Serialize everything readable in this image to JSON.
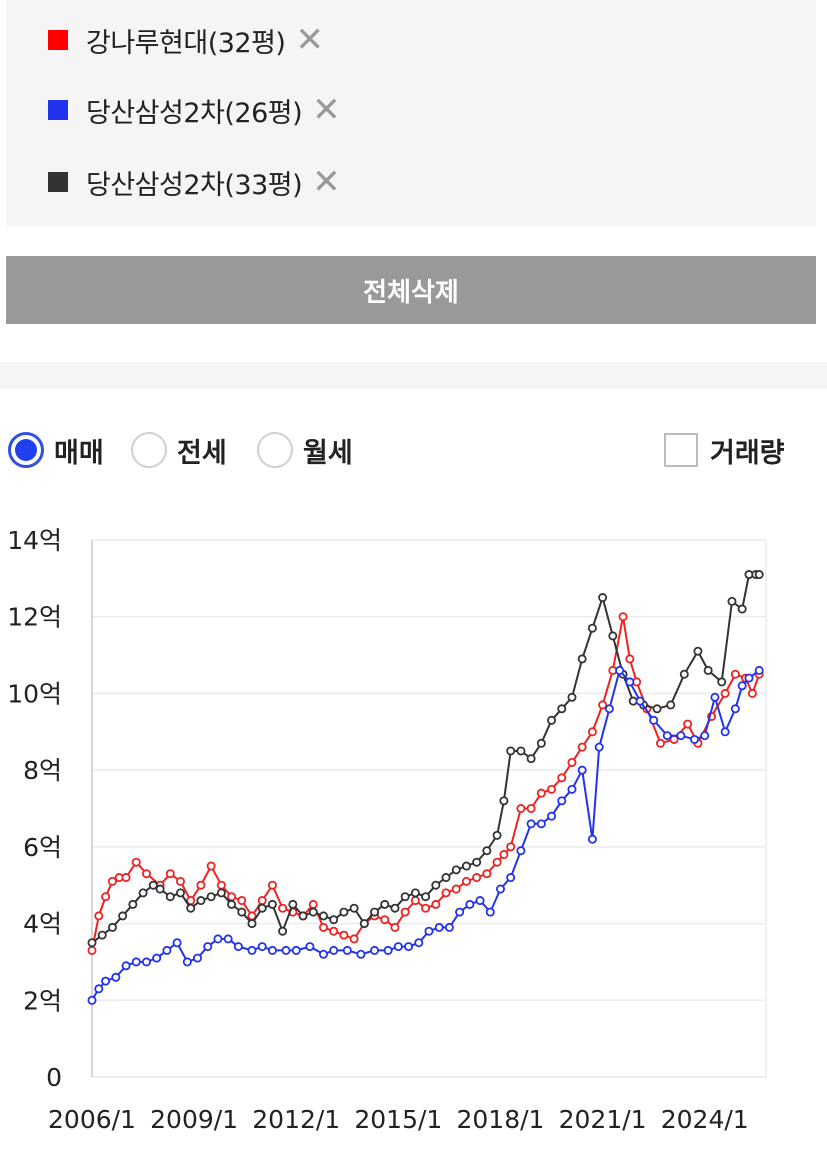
{
  "legend": {
    "items": [
      {
        "label": "강나루현대(32평)",
        "color": "#ff0000",
        "remove_icon": "close-icon"
      },
      {
        "label": "당산삼성2차(26평)",
        "color": "#2233ee",
        "remove_icon": "close-icon"
      },
      {
        "label": "당산삼성2차(33평)",
        "color": "#333333",
        "remove_icon": "close-icon"
      }
    ],
    "remove_glyph": "✕"
  },
  "delete_all_label": "전체삭제",
  "options": {
    "radios": [
      {
        "label": "매매",
        "checked": true
      },
      {
        "label": "전세",
        "checked": false
      },
      {
        "label": "월세",
        "checked": false
      }
    ],
    "volume_label": "거래량",
    "volume_checked": false
  },
  "colors": {
    "accent": "#2040f0",
    "button": "#999999",
    "panel": "#f5f5f5"
  },
  "chart_data": {
    "type": "line",
    "x_tick_labels": [
      "2006/1",
      "2009/1",
      "2012/1",
      "2015/1",
      "2018/1",
      "2021/1",
      "2024/1"
    ],
    "y_tick_labels": [
      "0",
      "2억",
      "4억",
      "6억",
      "8억",
      "10억",
      "12억",
      "14억"
    ],
    "xlim": [
      2006.0,
      2025.8
    ],
    "ylim": [
      0,
      14
    ],
    "grid": true,
    "series": [
      {
        "name": "강나루현대(32평)",
        "color": "#ee2222",
        "x": [
          2006.0,
          2006.2,
          2006.4,
          2006.6,
          2006.8,
          2007.0,
          2007.3,
          2007.6,
          2008.0,
          2008.3,
          2008.6,
          2008.9,
          2009.2,
          2009.5,
          2009.8,
          2010.1,
          2010.4,
          2010.7,
          2011.0,
          2011.3,
          2011.6,
          2011.9,
          2012.2,
          2012.5,
          2012.8,
          2013.1,
          2013.4,
          2013.7,
          2014.0,
          2014.3,
          2014.6,
          2014.9,
          2015.2,
          2015.5,
          2015.8,
          2016.1,
          2016.4,
          2016.7,
          2017.0,
          2017.3,
          2017.6,
          2017.9,
          2018.1,
          2018.3,
          2018.6,
          2018.9,
          2019.2,
          2019.5,
          2019.8,
          2020.1,
          2020.4,
          2020.7,
          2021.0,
          2021.3,
          2021.6,
          2021.8,
          2022.0,
          2022.3,
          2022.7,
          2023.1,
          2023.5,
          2023.8,
          2024.2,
          2024.6,
          2024.9,
          2025.2,
          2025.4,
          2025.6
        ],
        "y": [
          3.3,
          4.2,
          4.7,
          5.1,
          5.2,
          5.2,
          5.6,
          5.3,
          5.0,
          5.3,
          5.1,
          4.6,
          5.0,
          5.5,
          5.0,
          4.7,
          4.6,
          4.2,
          4.6,
          5.0,
          4.4,
          4.3,
          4.2,
          4.5,
          3.9,
          3.8,
          3.7,
          3.6,
          4.0,
          4.2,
          4.1,
          3.9,
          4.3,
          4.6,
          4.4,
          4.5,
          4.8,
          4.9,
          5.1,
          5.2,
          5.3,
          5.6,
          5.8,
          6.0,
          7.0,
          7.0,
          7.4,
          7.5,
          7.8,
          8.2,
          8.6,
          9.0,
          9.7,
          10.6,
          12.0,
          10.9,
          10.3,
          9.6,
          8.7,
          8.8,
          9.2,
          8.7,
          9.4,
          10.0,
          10.5,
          10.4,
          10.0,
          10.5
        ]
      },
      {
        "name": "당산삼성2차(26평)",
        "color": "#2233ee",
        "x": [
          2006.0,
          2006.2,
          2006.4,
          2006.7,
          2007.0,
          2007.3,
          2007.6,
          2007.9,
          2008.2,
          2008.5,
          2008.8,
          2009.1,
          2009.4,
          2009.7,
          2010.0,
          2010.3,
          2010.7,
          2011.0,
          2011.3,
          2011.7,
          2012.0,
          2012.4,
          2012.8,
          2013.1,
          2013.5,
          2013.9,
          2014.3,
          2014.7,
          2015.0,
          2015.3,
          2015.6,
          2015.9,
          2016.2,
          2016.5,
          2016.8,
          2017.1,
          2017.4,
          2017.7,
          2018.0,
          2018.3,
          2018.6,
          2018.9,
          2019.2,
          2019.5,
          2019.8,
          2020.1,
          2020.4,
          2020.7,
          2020.9,
          2021.2,
          2021.5,
          2021.8,
          2022.1,
          2022.5,
          2022.9,
          2023.3,
          2023.7,
          2024.0,
          2024.3,
          2024.6,
          2024.9,
          2025.1,
          2025.3,
          2025.6
        ],
        "y": [
          2.0,
          2.3,
          2.5,
          2.6,
          2.9,
          3.0,
          3.0,
          3.1,
          3.3,
          3.5,
          3.0,
          3.1,
          3.4,
          3.6,
          3.6,
          3.4,
          3.3,
          3.4,
          3.3,
          3.3,
          3.3,
          3.4,
          3.2,
          3.3,
          3.3,
          3.2,
          3.3,
          3.3,
          3.4,
          3.4,
          3.5,
          3.8,
          3.9,
          3.9,
          4.3,
          4.5,
          4.6,
          4.3,
          4.9,
          5.2,
          5.9,
          6.6,
          6.6,
          6.8,
          7.2,
          7.5,
          8.0,
          6.2,
          8.6,
          9.6,
          10.6,
          10.3,
          9.8,
          9.3,
          8.9,
          8.9,
          8.8,
          8.9,
          9.9,
          9.0,
          9.6,
          10.2,
          10.4,
          10.6
        ]
      },
      {
        "name": "당산삼성2차(33평)",
        "color": "#333333",
        "x": [
          2006.0,
          2006.3,
          2006.6,
          2006.9,
          2007.2,
          2007.5,
          2007.8,
          2008.0,
          2008.3,
          2008.6,
          2008.9,
          2009.2,
          2009.5,
          2009.8,
          2010.1,
          2010.4,
          2010.7,
          2011.0,
          2011.3,
          2011.6,
          2011.9,
          2012.2,
          2012.5,
          2012.8,
          2013.1,
          2013.4,
          2013.7,
          2014.0,
          2014.3,
          2014.6,
          2014.9,
          2015.2,
          2015.5,
          2015.8,
          2016.1,
          2016.4,
          2016.7,
          2017.0,
          2017.3,
          2017.6,
          2017.9,
          2018.1,
          2018.3,
          2018.6,
          2018.9,
          2019.2,
          2019.5,
          2019.8,
          2020.1,
          2020.4,
          2020.7,
          2021.0,
          2021.3,
          2021.6,
          2021.9,
          2022.2,
          2022.6,
          2023.0,
          2023.4,
          2023.8,
          2024.1,
          2024.5,
          2024.8,
          2025.1,
          2025.3,
          2025.5,
          2025.6
        ],
        "y": [
          3.5,
          3.7,
          3.9,
          4.2,
          4.5,
          4.8,
          5.0,
          4.9,
          4.7,
          4.8,
          4.4,
          4.6,
          4.7,
          4.8,
          4.5,
          4.3,
          4.0,
          4.4,
          4.5,
          3.8,
          4.5,
          4.2,
          4.3,
          4.2,
          4.1,
          4.3,
          4.4,
          4.0,
          4.3,
          4.5,
          4.4,
          4.7,
          4.8,
          4.7,
          5.0,
          5.2,
          5.4,
          5.5,
          5.6,
          5.9,
          6.3,
          7.2,
          8.5,
          8.5,
          8.3,
          8.7,
          9.3,
          9.6,
          9.9,
          10.9,
          11.7,
          12.5,
          11.5,
          10.5,
          9.8,
          9.7,
          9.6,
          9.7,
          10.5,
          11.1,
          10.6,
          10.3,
          12.4,
          12.2,
          13.1,
          13.1,
          13.1
        ]
      }
    ]
  }
}
